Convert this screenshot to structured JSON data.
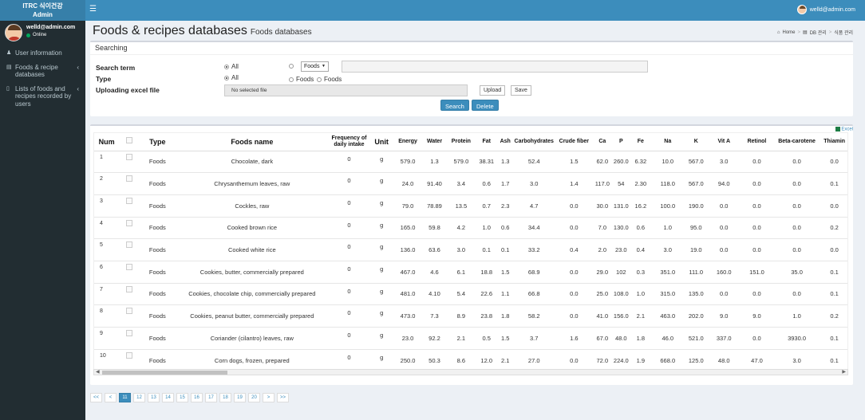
{
  "brand": {
    "line1": "ITRC 식이건강",
    "line2": "Admin"
  },
  "topbar": {
    "menu_icon": "bars-icon",
    "user_email": "welld@admin.com"
  },
  "sidebar": {
    "user_name": "welld@admin.com",
    "status": "Online",
    "items": [
      {
        "icon": "user-icon",
        "label": "User information",
        "chevron": ""
      },
      {
        "icon": "database-icon",
        "label": "Foods & recipe databases",
        "chevron": "‹"
      },
      {
        "icon": "folder-icon",
        "label": "Lists of foods and recipes recorded by users",
        "chevron": "‹"
      }
    ]
  },
  "header": {
    "title": "Foods & recipes databases",
    "subtitle": "Foods databases",
    "breadcrumb": [
      "Home",
      "DB 관리",
      "식품 관리"
    ]
  },
  "search": {
    "box_title": "Searching",
    "search_term_label": "Search term",
    "type_label": "Type",
    "upload_label": "Uploading excel file",
    "term_all": "All",
    "term_select": "Foods",
    "search_value": "",
    "type_all": "All",
    "type_foods1": "Foods",
    "type_foods2": "Foods",
    "file_text": "No selected file",
    "upload_button": "Upload",
    "save_button": "Save",
    "search_button": "Search",
    "delete_button": "Delete"
  },
  "table": {
    "excel_link": "Excel",
    "columns": [
      "Num",
      "",
      "Type",
      "Foods name",
      "Frequency of daily intake",
      "Unit",
      "Energy",
      "Water",
      "Protein",
      "Fat",
      "Ash",
      "Carbohydrates",
      "Crude fiber",
      "Ca",
      "P",
      "Fe",
      "Na",
      "K",
      "Vit A",
      "Retinol",
      "Beta-carotene",
      "Thiamin"
    ],
    "rows": [
      [
        "1",
        "Foods",
        "Chocolate, dark",
        "0",
        "g",
        "579.0",
        "1.3",
        "579.0",
        "38.31",
        "1.3",
        "52.4",
        "1.5",
        "62.0",
        "260.0",
        "6.32",
        "10.0",
        "567.0",
        "3.0",
        "0.0",
        "0.0",
        "0.0"
      ],
      [
        "2",
        "Foods",
        "Chrysanthemum leaves, raw",
        "0",
        "g",
        "24.0",
        "91.40",
        "3.4",
        "0.6",
        "1.7",
        "3.0",
        "1.4",
        "117.0",
        "54",
        "2.30",
        "118.0",
        "567.0",
        "94.0",
        "0.0",
        "0.0",
        "0.1"
      ],
      [
        "3",
        "Foods",
        "Cockles, raw",
        "0",
        "g",
        "79.0",
        "78.89",
        "13.5",
        "0.7",
        "2.3",
        "4.7",
        "0.0",
        "30.0",
        "131.0",
        "16.2",
        "100.0",
        "190.0",
        "0.0",
        "0.0",
        "0.0",
        "0.0"
      ],
      [
        "4",
        "Foods",
        "Cooked brown rice",
        "0",
        "g",
        "165.0",
        "59.8",
        "4.2",
        "1.0",
        "0.6",
        "34.4",
        "0.0",
        "7.0",
        "130.0",
        "0.6",
        "1.0",
        "95.0",
        "0.0",
        "0.0",
        "0.0",
        "0.2"
      ],
      [
        "5",
        "Foods",
        "Cooked white rice",
        "0",
        "g",
        "136.0",
        "63.6",
        "3.0",
        "0.1",
        "0.1",
        "33.2",
        "0.4",
        "2.0",
        "23.0",
        "0.4",
        "3.0",
        "19.0",
        "0.0",
        "0.0",
        "0.0",
        "0.0"
      ],
      [
        "6",
        "Foods",
        "Cookies, butter, commercially prepared",
        "0",
        "g",
        "467.0",
        "4.6",
        "6.1",
        "18.8",
        "1.5",
        "68.9",
        "0.0",
        "29.0",
        "102",
        "0.3",
        "351.0",
        "111.0",
        "160.0",
        "151.0",
        "35.0",
        "0.1"
      ],
      [
        "7",
        "Foods",
        "Cookies, chocolate chip, commercially prepared",
        "0",
        "g",
        "481.0",
        "4.10",
        "5.4",
        "22.6",
        "1.1",
        "66.8",
        "0.0",
        "25.0",
        "108.0",
        "1.0",
        "315.0",
        "135.0",
        "0.0",
        "0.0",
        "0.0",
        "0.1"
      ],
      [
        "8",
        "Foods",
        "Cookies, peanut butter, commercially prepared",
        "0",
        "g",
        "473.0",
        "7.3",
        "8.9",
        "23.8",
        "1.8",
        "58.2",
        "0.0",
        "41.0",
        "156.0",
        "2.1",
        "463.0",
        "202.0",
        "9.0",
        "9.0",
        "1.0",
        "0.2"
      ],
      [
        "9",
        "Foods",
        "Coriander (cilantro) leaves, raw",
        "0",
        "g",
        "23.0",
        "92.2",
        "2.1",
        "0.5",
        "1.5",
        "3.7",
        "1.6",
        "67.0",
        "48.0",
        "1.8",
        "46.0",
        "521.0",
        "337.0",
        "0.0",
        "3930.0",
        "0.1"
      ],
      [
        "10",
        "Foods",
        "Corn dogs, frozen, prepared",
        "0",
        "g",
        "250.0",
        "50.3",
        "8.6",
        "12.0",
        "2.1",
        "27.0",
        "0.0",
        "72.0",
        "224.0",
        "1.9",
        "668.0",
        "125.0",
        "48.0",
        "47.0",
        "3.0",
        "0.1"
      ]
    ]
  },
  "pagination": {
    "pages": [
      "<<",
      "<",
      "11",
      "12",
      "13",
      "14",
      "15",
      "16",
      "17",
      "18",
      "19",
      "20",
      ">",
      ">>"
    ],
    "active": "11"
  }
}
